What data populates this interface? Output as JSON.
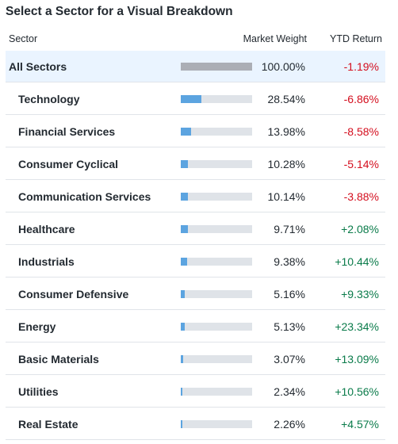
{
  "title": "Select a Sector for a Visual Breakdown",
  "headers": {
    "sector": "Sector",
    "weight": "Market Weight",
    "ytd": "YTD Return"
  },
  "rows": [
    {
      "sector": "All Sectors",
      "weight": "100.00%",
      "weight_value": 100.0,
      "ytd": "-1.19%",
      "selected": true
    },
    {
      "sector": "Technology",
      "weight": "28.54%",
      "weight_value": 28.54,
      "ytd": "-6.86%"
    },
    {
      "sector": "Financial Services",
      "weight": "13.98%",
      "weight_value": 13.98,
      "ytd": "-8.58%"
    },
    {
      "sector": "Consumer Cyclical",
      "weight": "10.28%",
      "weight_value": 10.28,
      "ytd": "-5.14%"
    },
    {
      "sector": "Communication Services",
      "weight": "10.14%",
      "weight_value": 10.14,
      "ytd": "-3.88%"
    },
    {
      "sector": "Healthcare",
      "weight": "9.71%",
      "weight_value": 9.71,
      "ytd": "+2.08%"
    },
    {
      "sector": "Industrials",
      "weight": "9.38%",
      "weight_value": 9.38,
      "ytd": "+10.44%"
    },
    {
      "sector": "Consumer Defensive",
      "weight": "5.16%",
      "weight_value": 5.16,
      "ytd": "+9.33%"
    },
    {
      "sector": "Energy",
      "weight": "5.13%",
      "weight_value": 5.13,
      "ytd": "+23.34%"
    },
    {
      "sector": "Basic Materials",
      "weight": "3.07%",
      "weight_value": 3.07,
      "ytd": "+13.09%"
    },
    {
      "sector": "Utilities",
      "weight": "2.34%",
      "weight_value": 2.34,
      "ytd": "+10.56%"
    },
    {
      "sector": "Real Estate",
      "weight": "2.26%",
      "weight_value": 2.26,
      "ytd": "+4.57%"
    }
  ],
  "colors": {
    "bar_fill": "#5ca4e0",
    "bar_fill_selected": "#abaeb5",
    "bar_track": "#dfe3e8",
    "negative": "#d40e1e",
    "positive": "#0a7b4a",
    "selected_row_bg": "#eaf4ff"
  }
}
